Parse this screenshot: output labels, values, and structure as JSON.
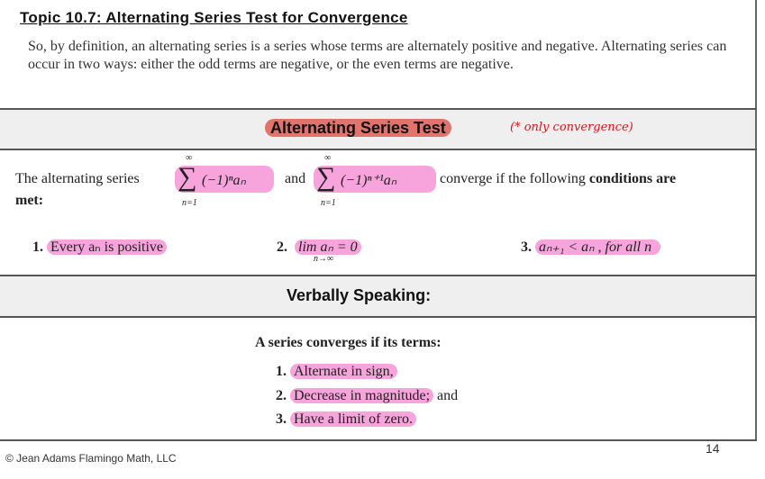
{
  "title": "Topic 10.7: Alternating Series Test  for Convergence",
  "intro": "So, by definition, an alternating series is a series whose terms are alternately positive and negative. Alternating series can occur in two ways: either the odd terms are negative, or the even terms are negative.",
  "test": {
    "heading": "Alternating Series Test",
    "handwritten_note": "(* only convergence)",
    "statement_prefix": "The alternating series",
    "series1": "(−1)ⁿaₙ",
    "and": "and",
    "series2": "(−1)ⁿ⁺¹aₙ",
    "sum_top": "∞",
    "sum_bottom": "n=1",
    "statement_suffix": "converge if the following",
    "statement_bold": "conditions are met",
    "statement_end": ":",
    "conditions": [
      {
        "num": "1.",
        "text": "Every aₙ is positive"
      },
      {
        "num": "2.",
        "text": "lim aₙ = 0",
        "sub": "n→∞"
      },
      {
        "num": "3.",
        "text": "aₙ₊₁ < aₙ , for all n"
      }
    ]
  },
  "verbal": {
    "heading": "Verbally Speaking:",
    "lead": "A series converges if its terms:",
    "items": [
      {
        "num": "1.",
        "text": "Alternate in sign,"
      },
      {
        "num": "2.",
        "text": "Decrease in magnitude;",
        "tail": " and"
      },
      {
        "num": "3.",
        "text": "Have a limit of zero."
      }
    ]
  },
  "footer": "© Jean Adams Flamingo Math, LLC",
  "page_number": "14",
  "colors": {
    "highlight_pink": "#f7a3dc",
    "highlight_red": "#e0736b",
    "note_red": "#e0101a",
    "band_gray": "#efefef"
  }
}
